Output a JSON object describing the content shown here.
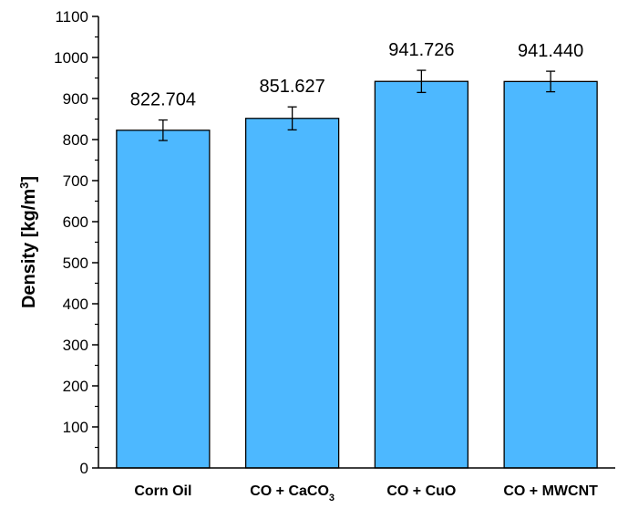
{
  "chart_data": {
    "type": "bar",
    "title": "",
    "xlabel": "",
    "ylabel": "Density [kg/m",
    "ylabel_superscript": "3",
    "ylabel_suffix": "]",
    "ylim": [
      0,
      1100
    ],
    "yticks": [
      0,
      100,
      200,
      300,
      400,
      500,
      600,
      700,
      800,
      900,
      1000,
      1100
    ],
    "categories": [
      {
        "main": "Corn Oil",
        "sub": "",
        "after": ""
      },
      {
        "main": "CO + CaCO",
        "sub": "3",
        "after": ""
      },
      {
        "main": "CO + CuO",
        "sub": "",
        "after": ""
      },
      {
        "main": "CO + MWCNT",
        "sub": "",
        "after": ""
      }
    ],
    "values": [
      822.704,
      851.627,
      941.726,
      941.44
    ],
    "value_labels": [
      "822.704",
      "851.627",
      "941.726",
      "941.440"
    ],
    "errors": [
      25,
      28,
      27,
      25
    ],
    "bar_color": "#4DB8FF",
    "grid": false,
    "legend": "none"
  }
}
